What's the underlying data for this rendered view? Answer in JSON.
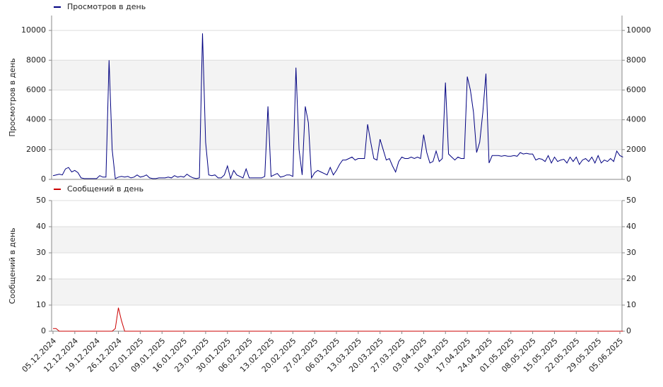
{
  "chart_data": [
    {
      "type": "line",
      "ylabel": "Просмотров в день",
      "ylim": [
        0,
        11000
      ],
      "yticks": [
        0,
        2000,
        4000,
        6000,
        8000,
        10000
      ],
      "grid": true,
      "bands": "#f3f3f3",
      "series": [
        {
          "name": "Просмотров в день",
          "color": "#000080",
          "values": [
            250,
            300,
            350,
            300,
            700,
            800,
            500,
            600,
            450,
            100,
            50,
            50,
            50,
            50,
            50,
            250,
            150,
            150,
            8000,
            2000,
            50,
            150,
            200,
            150,
            200,
            100,
            150,
            300,
            150,
            200,
            300,
            100,
            50,
            50,
            100,
            100,
            100,
            150,
            100,
            250,
            150,
            200,
            150,
            350,
            200,
            100,
            50,
            100,
            9800,
            2500,
            300,
            250,
            300,
            100,
            100,
            300,
            900,
            50,
            600,
            300,
            200,
            100,
            700,
            100,
            100,
            100,
            100,
            100,
            200,
            4900,
            200,
            300,
            400,
            150,
            200,
            300,
            300,
            200,
            7500,
            2000,
            300,
            4900,
            3800,
            100,
            450,
            600,
            500,
            400,
            300,
            800,
            300,
            600,
            1000,
            1300,
            1300,
            1400,
            1500,
            1300,
            1400,
            1400,
            1400,
            3700,
            2500,
            1400,
            1300,
            2700,
            2000,
            1300,
            1400,
            900,
            500,
            1200,
            1500,
            1400,
            1400,
            1500,
            1400,
            1500,
            1400,
            3000,
            1800,
            1100,
            1200,
            1900,
            1200,
            1400,
            6500,
            1700,
            1500,
            1300,
            1500,
            1400,
            1400,
            6900,
            6000,
            4500,
            1800,
            2500,
            4500,
            7100,
            1100,
            1600,
            1600,
            1600,
            1550,
            1600,
            1550,
            1550,
            1600,
            1550,
            1800,
            1700,
            1750,
            1700,
            1700,
            1300,
            1400,
            1350,
            1200,
            1600,
            1100,
            1500,
            1200,
            1300,
            1350,
            1100,
            1500,
            1200,
            1500,
            1000,
            1300,
            1400,
            1200,
            1500,
            1100,
            1600,
            1100,
            1300,
            1200,
            1400,
            1200,
            1900,
            1600,
            1500
          ]
        }
      ]
    },
    {
      "type": "line",
      "ylabel": "Сообщений в день",
      "ylim": [
        0,
        50
      ],
      "yticks": [
        0,
        10,
        20,
        30,
        40,
        50
      ],
      "grid": true,
      "bands": "#f3f3f3",
      "categories": [
        "05.12.2024",
        null,
        null,
        null,
        null,
        null,
        null,
        "12.12.2024",
        null,
        null,
        null,
        null,
        null,
        null,
        "19.12.2024",
        null,
        null,
        null,
        null,
        null,
        null,
        "26.12.2024",
        null,
        null,
        null,
        null,
        null,
        null,
        "02.01.2025",
        null,
        null,
        null,
        null,
        null,
        null,
        "09.01.2025",
        null,
        null,
        null,
        null,
        null,
        null,
        "16.01.2025",
        null,
        null,
        null,
        null,
        null,
        null,
        "23.01.2025",
        null,
        null,
        null,
        null,
        null,
        null,
        "30.01.2025",
        null,
        null,
        null,
        null,
        null,
        null,
        "06.02.2025",
        null,
        null,
        null,
        null,
        null,
        null,
        "13.02.2025",
        null,
        null,
        null,
        null,
        null,
        null,
        "20.02.2025",
        null,
        null,
        null,
        null,
        null,
        null,
        "27.02.2025",
        null,
        null,
        null,
        null,
        null,
        null,
        "06.03.2025",
        null,
        null,
        null,
        null,
        null,
        null,
        "13.03.2025",
        null,
        null,
        null,
        null,
        null,
        null,
        "20.03.2025",
        null,
        null,
        null,
        null,
        null,
        null,
        "27.03.2025",
        null,
        null,
        null,
        null,
        null,
        null,
        "03.04.2025",
        null,
        null,
        null,
        null,
        null,
        null,
        "10.04.2025",
        null,
        null,
        null,
        null,
        null,
        null,
        "17.04.2025",
        null,
        null,
        null,
        null,
        null,
        null,
        "24.04.2025",
        null,
        null,
        null,
        null,
        null,
        null,
        "01.05.2025",
        null,
        null,
        null,
        null,
        null,
        null,
        "08.05.2025",
        null,
        null,
        null,
        null,
        null,
        null,
        "15.05.2025",
        null,
        null,
        null,
        null,
        null,
        null,
        "22.05.2025",
        null,
        null,
        null,
        null,
        null,
        null,
        "29.05.2025",
        null,
        null,
        null,
        null,
        null,
        null,
        "05.06.2025",
        null
      ],
      "series": [
        {
          "name": "Сообщений в день",
          "color": "#cc0000",
          "values": [
            1,
            1,
            0,
            0,
            0,
            0,
            0,
            0,
            0,
            0,
            0,
            0,
            0,
            0,
            0,
            0,
            0,
            0,
            0,
            0,
            1,
            9,
            4,
            0,
            0,
            0,
            0,
            0,
            0,
            0,
            0,
            0,
            0,
            0,
            0,
            0,
            0,
            0,
            0,
            0,
            0,
            0,
            0,
            0,
            0,
            0,
            0,
            0,
            0,
            0,
            0,
            0,
            0,
            0,
            0,
            0,
            0,
            0,
            0,
            0,
            0,
            0,
            0,
            0,
            0,
            0,
            0,
            0,
            0,
            0,
            0,
            0,
            0,
            0,
            0,
            0,
            0,
            0,
            0,
            0,
            0,
            0,
            0,
            0,
            0,
            0,
            0,
            0,
            0,
            0,
            0,
            0,
            0,
            0,
            0,
            0,
            0,
            0,
            0,
            0,
            0,
            0,
            0,
            0,
            0,
            0,
            0,
            0,
            0,
            0,
            0,
            0,
            0,
            0,
            0,
            0,
            0,
            0,
            0,
            0,
            0,
            0,
            0,
            0,
            0,
            0,
            0,
            0,
            0,
            0,
            0,
            0,
            0,
            0,
            0,
            0,
            0,
            0,
            0,
            0,
            0,
            0,
            0,
            0,
            0,
            0,
            0,
            0,
            0,
            0,
            0,
            0,
            0,
            0,
            0,
            0,
            0,
            0,
            0,
            0,
            0,
            0,
            0,
            0,
            0,
            0,
            0,
            0,
            0,
            0,
            0,
            0,
            0,
            0,
            0,
            0,
            0,
            0,
            0,
            0,
            0,
            0,
            0,
            0
          ]
        }
      ]
    }
  ]
}
